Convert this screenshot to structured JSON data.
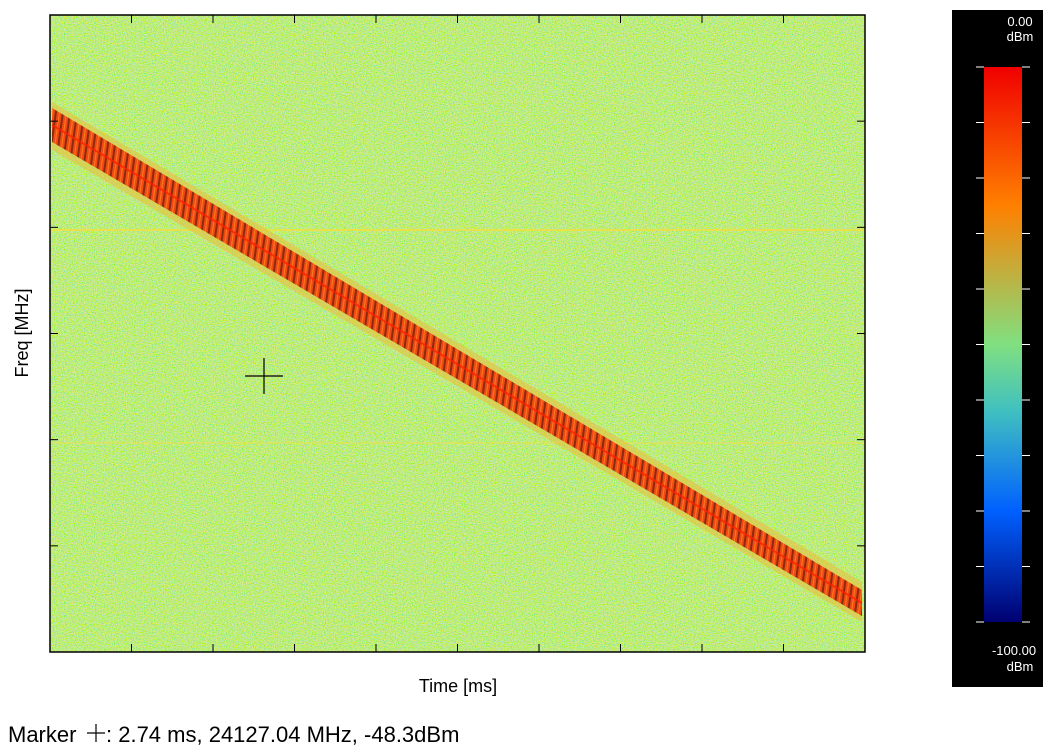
{
  "plot": {
    "x_label": "Time [ms]",
    "y_label": "Freq [MHz]"
  },
  "colorbar": {
    "top_value": "0.00",
    "top_unit": "dBm",
    "bottom_value": "-100.00",
    "bottom_unit": "dBm"
  },
  "marker": {
    "label": "Marker",
    "readout": ": 2.74 ms,  24127.04 MHz,  -48.3dBm"
  }
}
